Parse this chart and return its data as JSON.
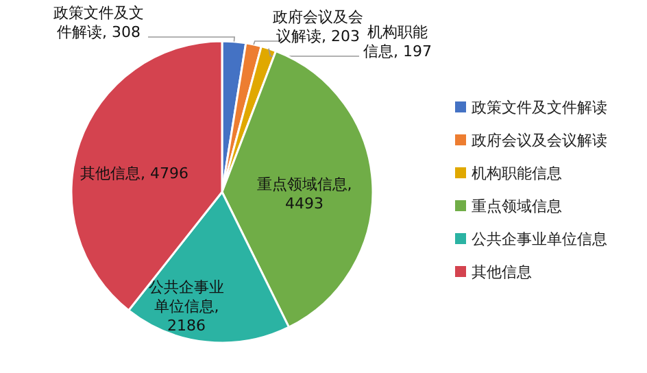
{
  "chart_data": {
    "type": "pie",
    "categories": [
      "政策文件及文件解读",
      "政府会议及会议解读",
      "机构职能信息",
      "重点领域信息",
      "公共企事业单位信息",
      "其他信息"
    ],
    "values": [
      308,
      203,
      197,
      4493,
      2186,
      4796
    ],
    "value_labels": [
      "政策文件及文件解读, 308",
      "政府会议及会议解读, 203",
      "机构职能信息, 197",
      "重点领域信息, 4493",
      "公共企事业单位信息, 2186",
      "其他信息, 4796"
    ],
    "colors": [
      "#4472c4",
      "#ed7d31",
      "#e0a800",
      "#70ad47",
      "#2bb3a3",
      "#d4434f"
    ],
    "legend": "right"
  }
}
